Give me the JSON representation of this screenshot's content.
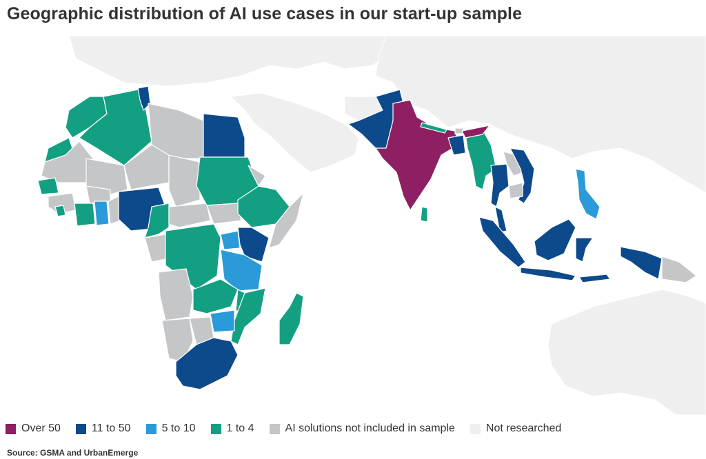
{
  "title": "Geographic distribution of AI use cases in our start-up sample",
  "source": "Source: GSMA and UrbanEmerge",
  "colors": {
    "over_50": "#8e1f63",
    "11_to_50": "#0d4a8c",
    "5_to_10": "#2a9bd8",
    "1_to_4": "#13a082",
    "not_included": "#c5c6c8",
    "not_researched": "#efefef"
  },
  "legend": [
    {
      "key": "over_50",
      "label": "Over 50"
    },
    {
      "key": "11_to_50",
      "label": "11 to 50"
    },
    {
      "key": "5_to_10",
      "label": "5 to 10"
    },
    {
      "key": "1_to_4",
      "label": "1 to 4"
    },
    {
      "key": "not_included",
      "label": "AI solutions not included in sample"
    },
    {
      "key": "not_researched",
      "label": "Not researched"
    }
  ]
}
